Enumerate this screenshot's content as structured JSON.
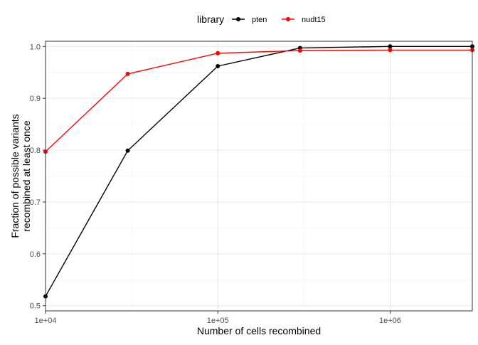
{
  "chart_data": {
    "type": "line",
    "xlabel": "Number of cells recombined",
    "ylabel_lines": [
      "Fraction of possible variants",
      "recombined at least once"
    ],
    "x_scale": "log10",
    "xlim": [
      10000,
      3000000
    ],
    "ylim": [
      0.49,
      1.01
    ],
    "x_ticks": [
      {
        "value": 10000,
        "label": "1e+04"
      },
      {
        "value": 100000,
        "label": "1e+05"
      },
      {
        "value": 1000000,
        "label": "1e+06"
      }
    ],
    "y_ticks": [
      {
        "value": 0.5,
        "label": "0.5"
      },
      {
        "value": 0.6,
        "label": "0.6"
      },
      {
        "value": 0.7,
        "label": "0.7"
      },
      {
        "value": 0.8,
        "label": "0.8"
      },
      {
        "value": 0.9,
        "label": "0.9"
      },
      {
        "value": 1.0,
        "label": "1.0"
      }
    ],
    "grid": true,
    "legend": {
      "title": "library",
      "position": "top"
    },
    "series": [
      {
        "name": "pten",
        "color": "#000000",
        "x": [
          10000,
          30000,
          100000,
          300000,
          1000000,
          3000000
        ],
        "y": [
          0.518,
          0.799,
          0.962,
          0.997,
          1.0,
          1.0
        ]
      },
      {
        "name": "nudt15",
        "color": "#ff0000",
        "x": [
          10000,
          30000,
          100000,
          300000,
          1000000,
          3000000
        ],
        "y": [
          0.797,
          0.947,
          0.987,
          0.992,
          0.993,
          0.993
        ]
      }
    ]
  }
}
